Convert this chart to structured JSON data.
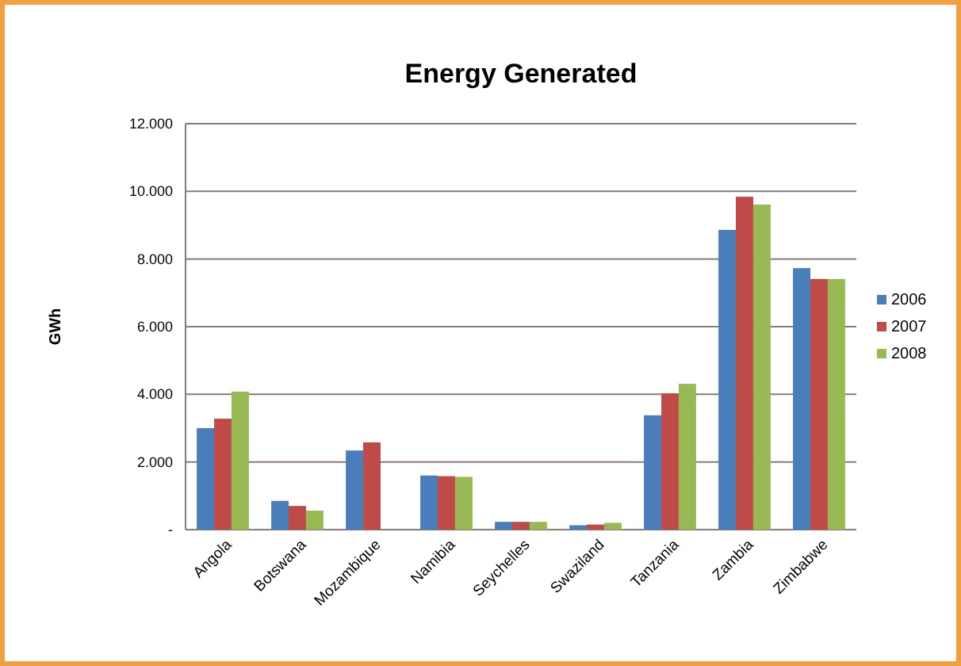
{
  "chart_data": {
    "type": "bar",
    "title": "Energy Generated",
    "ylabel": "GWh",
    "categories": [
      "Angola",
      "Botswana",
      "Mozambique",
      "Namibia",
      "Seychelles",
      "Swaziland",
      "Tanzania",
      "Zambia",
      "Zimbabwe"
    ],
    "series": [
      {
        "name": "2006",
        "color": "#4a7ebb",
        "values": [
          3000,
          850,
          2340,
          1600,
          230,
          130,
          3380,
          8860,
          7730
        ]
      },
      {
        "name": "2007",
        "color": "#be4b48",
        "values": [
          3280,
          700,
          2580,
          1580,
          230,
          150,
          4030,
          9840,
          7410
        ]
      },
      {
        "name": "2008",
        "color": "#98b954",
        "values": [
          4080,
          560,
          null,
          1560,
          230,
          200,
          4310,
          9610,
          7410
        ]
      }
    ],
    "ylim": [
      0,
      12000
    ],
    "yticks": [
      {
        "value": 0,
        "label": "-"
      },
      {
        "value": 2000,
        "label": "2.000"
      },
      {
        "value": 4000,
        "label": "4.000"
      },
      {
        "value": 6000,
        "label": "6.000"
      },
      {
        "value": 8000,
        "label": "8.000"
      },
      {
        "value": 10000,
        "label": "10.000"
      },
      {
        "value": 12000,
        "label": "12.000"
      }
    ],
    "grid": "y",
    "legend": "right"
  }
}
